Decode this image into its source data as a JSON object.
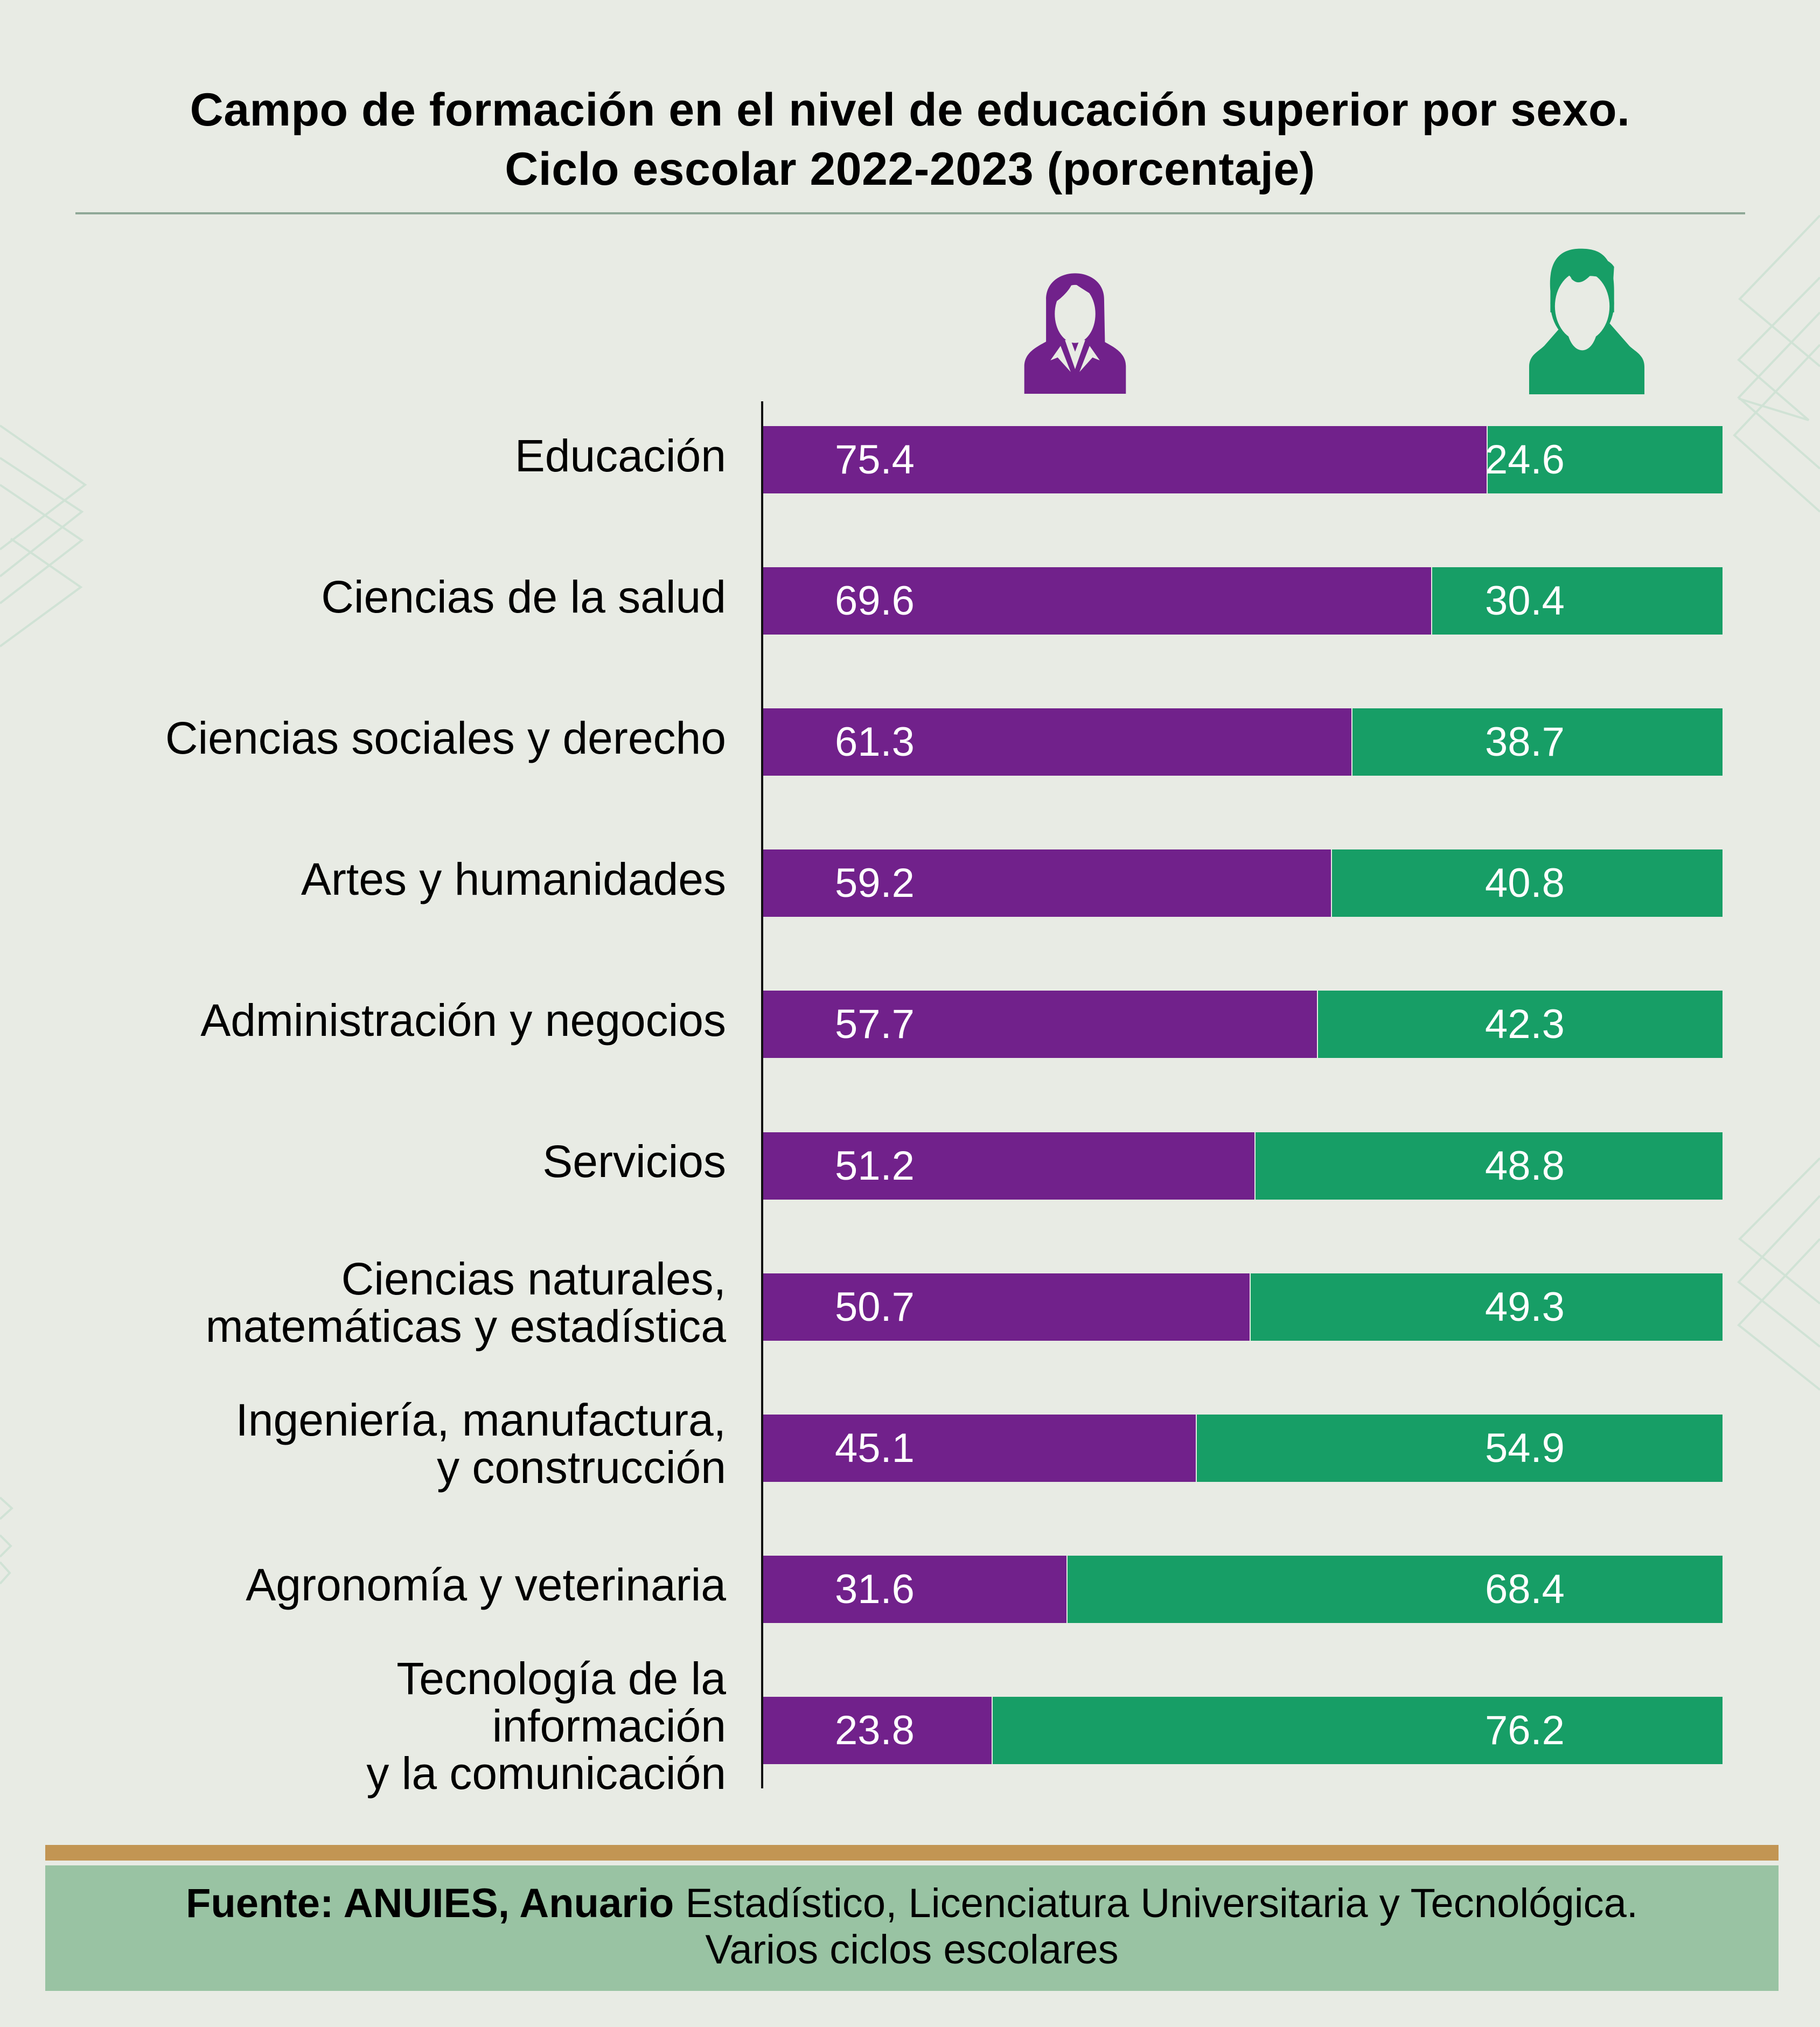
{
  "title": {
    "line1": "Campo de formación en el nivel de educación superior por sexo.",
    "line2": "Ciclo escolar 2022-2023 (porcentaje)"
  },
  "legend": {
    "female_icon": "woman-icon",
    "male_icon": "man-icon"
  },
  "colors": {
    "female": "#71218b",
    "male": "#179e66",
    "background": "#e8ebe4",
    "footer_bar": "#c29553",
    "footer_box": "#99c3a3"
  },
  "footer": {
    "source_bold": "Fuente: ANUIES, Anuario",
    "source_rest": " Estadístico, Licenciatura Universitaria y Tecnológica.",
    "line2": "Varios ciclos escolares"
  },
  "chart_data": {
    "type": "bar",
    "orientation": "horizontal",
    "stacked": true,
    "title": "Campo de formación en el nivel de educación superior por sexo. Ciclo escolar 2022-2023 (porcentaje)",
    "xlabel": "",
    "ylabel": "",
    "xlim": [
      0,
      100
    ],
    "grid": false,
    "legend": "top-right (icons: woman / man)",
    "categories": [
      "Educación",
      "Ciencias de la salud",
      "Ciencias sociales y derecho",
      "Artes y humanidades",
      "Administración y negocios",
      "Servicios",
      "Ciencias naturales,\nmatemáticas y estadística",
      "Ingeniería, manufactura,\ny construcción",
      "Agronomía y veterinaria",
      "Tecnología de la\ninformación\ny la comunicación"
    ],
    "series": [
      {
        "name": "Mujeres",
        "values": [
          75.4,
          69.6,
          61.3,
          59.2,
          57.7,
          51.2,
          50.7,
          45.1,
          31.6,
          23.8
        ]
      },
      {
        "name": "Hombres",
        "values": [
          24.6,
          30.4,
          38.7,
          40.8,
          42.3,
          48.8,
          49.3,
          54.9,
          68.4,
          76.2
        ]
      }
    ],
    "labels": {
      "female": [
        "75.4",
        "69.6",
        "61.3",
        "59.2",
        "57.7",
        "51.2",
        "50.7",
        "45.1",
        "31.6",
        "23.8"
      ],
      "male": [
        "24.6",
        "30.4",
        "38.7",
        "40.8",
        "42.3",
        "48.8",
        "49.3",
        "54.9",
        "68.4",
        "76.2"
      ]
    }
  }
}
